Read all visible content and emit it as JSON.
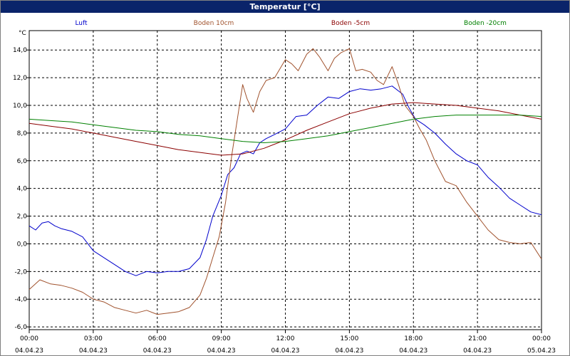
{
  "window": {
    "title": "Temperatur [°C]"
  },
  "chart_data": {
    "type": "line",
    "title": "Temperatur [°C]",
    "xlabel": "",
    "ylabel": "°C",
    "ylim": [
      -6.2,
      15.4
    ],
    "xlim": [
      0,
      24
    ],
    "grid": true,
    "legend": "top",
    "x_ticks": [
      {
        "time": "00:00",
        "date": "04.04.23"
      },
      {
        "time": "03:00",
        "date": "04.04.23"
      },
      {
        "time": "06:00",
        "date": "04.04.23"
      },
      {
        "time": "09:00",
        "date": "04.04.23"
      },
      {
        "time": "12:00",
        "date": "04.04.23"
      },
      {
        "time": "15:00",
        "date": "04.04.23"
      },
      {
        "time": "18:00",
        "date": "04.04.23"
      },
      {
        "time": "21:00",
        "date": "04.04.23"
      },
      {
        "time": "00:00",
        "date": "05.04.23"
      }
    ],
    "y_ticks": [
      "-6,0",
      "-4,0",
      "-2,0",
      "0,0",
      "2,0",
      "4,0",
      "6,0",
      "8,0",
      "10,0",
      "12,0",
      "14,0"
    ],
    "series": [
      {
        "name": "Luft",
        "color": "#0000cc",
        "x": [
          0,
          0.3,
          0.6,
          0.9,
          1.2,
          1.5,
          2,
          2.5,
          3,
          3.5,
          4,
          4.5,
          5,
          5.5,
          6,
          6.5,
          7,
          7.5,
          8,
          8.3,
          8.6,
          9,
          9.3,
          9.6,
          9.9,
          10.2,
          10.5,
          10.8,
          11.1,
          11.5,
          12,
          12.5,
          13,
          13.5,
          14,
          14.5,
          15,
          15.5,
          16,
          16.5,
          17,
          17.5,
          17.8,
          18.1,
          18.5,
          19,
          19.5,
          20,
          20.5,
          21,
          21.5,
          22,
          22.5,
          23,
          23.5,
          24
        ],
        "y": [
          1.3,
          1.0,
          1.5,
          1.6,
          1.3,
          1.1,
          0.9,
          0.5,
          -0.5,
          -1.0,
          -1.5,
          -2.0,
          -2.3,
          -2.0,
          -2.1,
          -2.0,
          -2.0,
          -1.8,
          -1.0,
          0.3,
          2.0,
          3.5,
          5.0,
          5.5,
          6.5,
          6.7,
          6.5,
          7.3,
          7.6,
          7.9,
          8.3,
          9.2,
          9.3,
          10.0,
          10.6,
          10.5,
          11.0,
          11.2,
          11.1,
          11.2,
          11.4,
          10.8,
          9.8,
          9.0,
          8.6,
          8.0,
          7.2,
          6.5,
          6.0,
          5.7,
          4.8,
          4.1,
          3.3,
          2.8,
          2.3,
          2.1
        ]
      },
      {
        "name": "Boden 10cm",
        "color": "#a0522d",
        "x": [
          0,
          0.5,
          1,
          1.5,
          2,
          2.5,
          3,
          3.5,
          4,
          4.5,
          5,
          5.5,
          6,
          6.5,
          7,
          7.5,
          8,
          8.3,
          8.6,
          8.9,
          9.2,
          9.5,
          9.8,
          10,
          10.2,
          10.5,
          10.8,
          11.1,
          11.5,
          12,
          12.3,
          12.6,
          13,
          13.3,
          13.6,
          14,
          14.3,
          14.6,
          15,
          15.3,
          15.6,
          16,
          16.3,
          16.6,
          17,
          17.3,
          17.6,
          18,
          18.3,
          18.6,
          19,
          19.5,
          20,
          20.5,
          21,
          21.5,
          22,
          22.5,
          23,
          23.5,
          24
        ],
        "y": [
          -3.3,
          -2.6,
          -2.9,
          -3.0,
          -3.2,
          -3.5,
          -4.0,
          -4.2,
          -4.6,
          -4.8,
          -5.0,
          -4.8,
          -5.1,
          -5.0,
          -4.9,
          -4.6,
          -3.7,
          -2.5,
          -1.0,
          0.5,
          3.0,
          6.5,
          9.5,
          11.5,
          10.5,
          9.5,
          11.0,
          11.8,
          12.0,
          13.3,
          13.0,
          12.5,
          13.7,
          14.1,
          13.5,
          12.5,
          13.4,
          13.8,
          14.1,
          12.5,
          12.6,
          12.4,
          11.8,
          11.5,
          12.8,
          11.5,
          10.0,
          9.2,
          8.3,
          7.5,
          6.0,
          4.5,
          4.2,
          3.0,
          2.0,
          1.0,
          0.3,
          0.1,
          0.0,
          0.1,
          -1.1
        ]
      },
      {
        "name": "Boden -5cm",
        "color": "#8b0000",
        "x": [
          0,
          1,
          2,
          3,
          4,
          5,
          6,
          7,
          8,
          9,
          10,
          11,
          12,
          13,
          14,
          15,
          16,
          17,
          18,
          19,
          20,
          21,
          22,
          23,
          24
        ],
        "y": [
          8.7,
          8.5,
          8.3,
          8.0,
          7.7,
          7.4,
          7.1,
          6.8,
          6.6,
          6.4,
          6.5,
          6.9,
          7.5,
          8.2,
          8.8,
          9.4,
          9.8,
          10.1,
          10.2,
          10.1,
          10.0,
          9.8,
          9.6,
          9.3,
          9.0
        ]
      },
      {
        "name": "Boden -20cm",
        "color": "#008000",
        "x": [
          0,
          1,
          2,
          3,
          4,
          5,
          6,
          7,
          8,
          9,
          10,
          11,
          12,
          13,
          14,
          15,
          16,
          17,
          18,
          19,
          20,
          21,
          22,
          23,
          24
        ],
        "y": [
          9.0,
          8.9,
          8.8,
          8.6,
          8.4,
          8.2,
          8.1,
          7.9,
          7.8,
          7.6,
          7.4,
          7.3,
          7.4,
          7.6,
          7.8,
          8.1,
          8.4,
          8.7,
          9.0,
          9.2,
          9.3,
          9.3,
          9.3,
          9.3,
          9.2
        ]
      }
    ]
  }
}
